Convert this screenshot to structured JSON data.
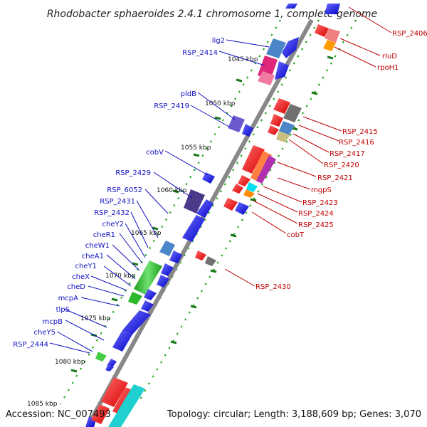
{
  "title": "Rhodobacter sphaeroides 2.4.1 chromosome 1, complete genome",
  "footer": {
    "accession": "Accession: NC_007493",
    "topology": "Topology: circular; Length: 3,188,609 bp; Genes: 3,070"
  },
  "kbp_ticks": [
    "1045 kbp",
    "1050 kbp",
    "1055 kbp",
    "1060 kbp",
    "1065 kbp",
    "1070 kbp",
    "1075 kbp",
    "1080 kbp",
    "1085 kbp"
  ],
  "left_genes": [
    "lig2",
    "RSP_2414",
    "pldB",
    "RSP_2419",
    "cobV",
    "RSP_2429",
    "RSP_6052",
    "RSP_2431",
    "RSP_2432",
    "cheY2",
    "cheR1",
    "cheW1",
    "cheA1",
    "cheY1",
    "cheX",
    "cheD",
    "mcpA",
    "tlpS",
    "mcpB",
    "cheY5",
    "RSP_2444"
  ],
  "right_genes": [
    "RSP_2406",
    "rluD",
    "rpoH1",
    "RSP_2415",
    "RSP_2416",
    "RSP_2417",
    "RSP_2420",
    "RSP_2421",
    "mgpS",
    "RSP_2423",
    "RSP_2424",
    "RSP_2425",
    "cobT",
    "RSP_2430"
  ],
  "colors": {
    "left_label": "#1010c0",
    "right_label": "#c00000",
    "forward_gene": "#0000ee",
    "reverse_gene": "#ee0000",
    "backbone": "#888888",
    "dots": "#22aa22"
  }
}
